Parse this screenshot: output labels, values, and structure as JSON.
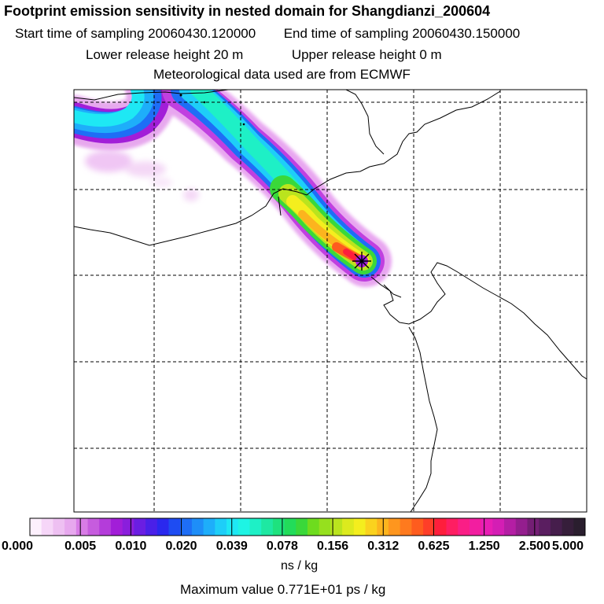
{
  "header": {
    "title": "Footprint emission sensitivity in nested domain for Shangdianzi_200604",
    "start_label": "Start time of sampling 20060430.120000",
    "end_label": "End time of sampling 20060430.150000",
    "lower_label": "Lower release height   20 m",
    "upper_label": "Upper release height    0 m",
    "met_label": "Meteorological data used are from ECMWF"
  },
  "map": {
    "station": "Shangdianzi",
    "maximum_ps_per_kg": 7.71
  },
  "colorbar": {
    "tick_labels": [
      "0.000",
      "0.005",
      "0.010",
      "0.020",
      "0.039",
      "0.078",
      "0.156",
      "0.312",
      "0.625",
      "1.250",
      "2.500",
      "5.000"
    ],
    "colors": [
      "#fdf0fd",
      "#f6d6f8",
      "#eec0f2",
      "#e7a8ee",
      "#d87ce6",
      "#c65cde",
      "#b43cda",
      "#a21ed8",
      "#8a1edc",
      "#6a1ee2",
      "#4a20e8",
      "#2a28ee",
      "#1e4cf2",
      "#1e6ef6",
      "#1e8ef8",
      "#1eaefa",
      "#1ecef8",
      "#1ee8f4",
      "#1ef4e4",
      "#1ef0c6",
      "#1ee8a2",
      "#1ee27e",
      "#22dc5a",
      "#3ad83a",
      "#6edc1e",
      "#96e01e",
      "#bae41e",
      "#dcea1e",
      "#f4ee1e",
      "#fad21e",
      "#fcb41e",
      "#fe961e",
      "#fe7a1e",
      "#fe5c1e",
      "#fe3e28",
      "#fe1e3c",
      "#fe1e62",
      "#fa1e86",
      "#f21ea0",
      "#e81eb4",
      "#d41eb4",
      "#b41ea4",
      "#941e8e",
      "#741e74",
      "#5a1e60",
      "#461e4c",
      "#361e3a",
      "#2a1e2e"
    ],
    "unit": "ns / kg",
    "max_label": "Maximum value  0.771E+01 ps / kg"
  }
}
